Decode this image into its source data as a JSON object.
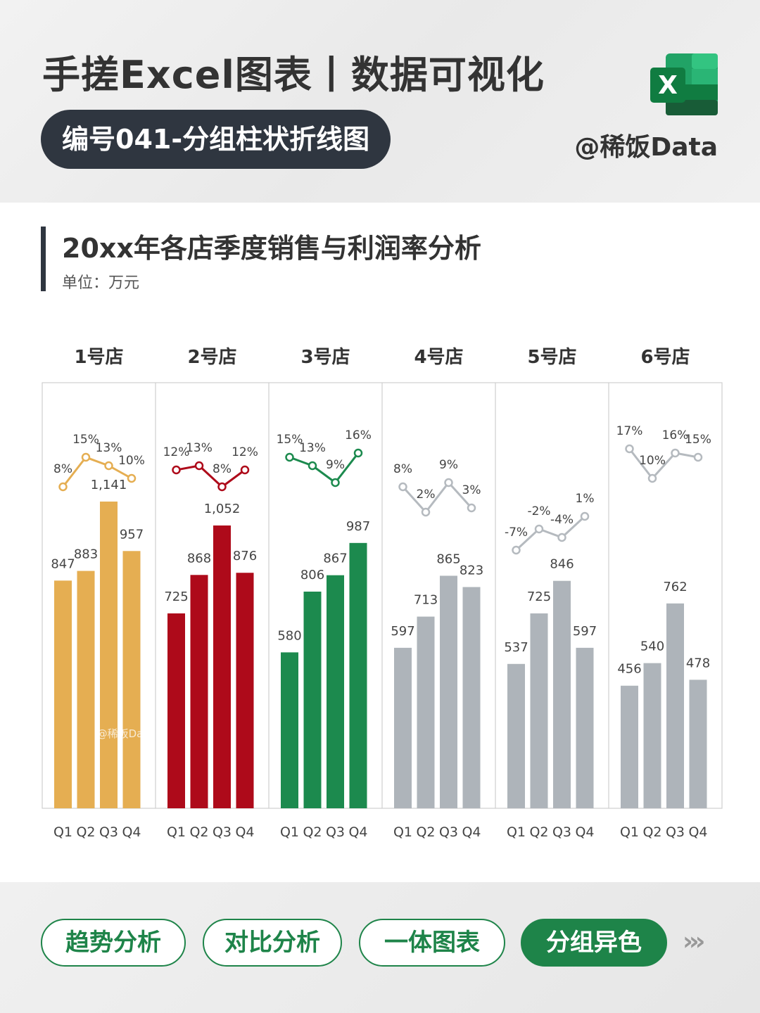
{
  "header": {
    "title": "手搓Excel图表丨数据可视化",
    "subtitle": "编号041-分组柱状折线图",
    "handle": "@稀饭Data",
    "app_icon": "excel-icon",
    "icon_letter": "X"
  },
  "chart_section": {
    "title": "20xx年各店季度销售与利润率分析",
    "unit": "单位：万元",
    "watermark": "@稀饭Data"
  },
  "chart_data": {
    "type": "bar",
    "title": "20xx年各店季度销售与利润率分析",
    "unit": "万元",
    "categories": [
      "Q1",
      "Q2",
      "Q3",
      "Q4"
    ],
    "ylim": [
      0,
      1400
    ],
    "margin_ylim": [
      -0.1,
      0.25
    ],
    "groups": [
      {
        "name": "1号店",
        "color": "#E5AE52",
        "line_color": "#E5AE52",
        "sales": [
          847,
          883,
          1141,
          957
        ],
        "sales_labels": [
          "847",
          "883",
          "1,141",
          "957"
        ],
        "margin": [
          0.08,
          0.15,
          0.13,
          0.1
        ],
        "margin_labels": [
          "8%",
          "15%",
          "13%",
          "10%"
        ]
      },
      {
        "name": "2号店",
        "color": "#AE0A1A",
        "line_color": "#AE0A1A",
        "sales": [
          725,
          868,
          1052,
          876
        ],
        "sales_labels": [
          "725",
          "868",
          "1,052",
          "876"
        ],
        "margin": [
          0.12,
          0.13,
          0.08,
          0.12
        ],
        "margin_labels": [
          "12%",
          "13%",
          "8%",
          "12%"
        ]
      },
      {
        "name": "3号店",
        "color": "#1C8A4E",
        "line_color": "#1C8A4E",
        "sales": [
          580,
          806,
          867,
          987
        ],
        "sales_labels": [
          "580",
          "806",
          "867",
          "987"
        ],
        "margin": [
          0.15,
          0.13,
          0.09,
          0.16
        ],
        "margin_labels": [
          "15%",
          "13%",
          "9%",
          "16%"
        ]
      },
      {
        "name": "4号店",
        "color": "#AEB4BA",
        "line_color": "#B5BABF",
        "sales": [
          597,
          713,
          865,
          823
        ],
        "sales_labels": [
          "597",
          "713",
          "865",
          "823"
        ],
        "margin": [
          0.08,
          0.02,
          0.09,
          0.03
        ],
        "margin_labels": [
          "8%",
          "2%",
          "9%",
          "3%"
        ]
      },
      {
        "name": "5号店",
        "color": "#AEB4BA",
        "line_color": "#B5BABF",
        "sales": [
          537,
          725,
          846,
          597
        ],
        "sales_labels": [
          "537",
          "725",
          "846",
          "597"
        ],
        "margin": [
          -0.07,
          -0.02,
          -0.04,
          0.01
        ],
        "margin_labels": [
          "-7%",
          "-2%",
          "-4%",
          "1%"
        ]
      },
      {
        "name": "6号店",
        "color": "#AEB4BA",
        "line_color": "#B5BABF",
        "sales": [
          456,
          540,
          762,
          478
        ],
        "sales_labels": [
          "456",
          "540",
          "762",
          "478"
        ],
        "margin": [
          0.17,
          0.1,
          0.16,
          0.15
        ],
        "margin_labels": [
          "17%",
          "10%",
          "16%",
          "15%"
        ]
      }
    ]
  },
  "footer_nav": {
    "items": [
      {
        "label": "趋势分析",
        "active": false
      },
      {
        "label": "对比分析",
        "active": false
      },
      {
        "label": "一体图表",
        "active": false
      },
      {
        "label": "分组异色",
        "active": true
      }
    ],
    "more_icon": "triple-chevron-right-icon",
    "more_label": "›››",
    "active_color": "#1E8449"
  }
}
